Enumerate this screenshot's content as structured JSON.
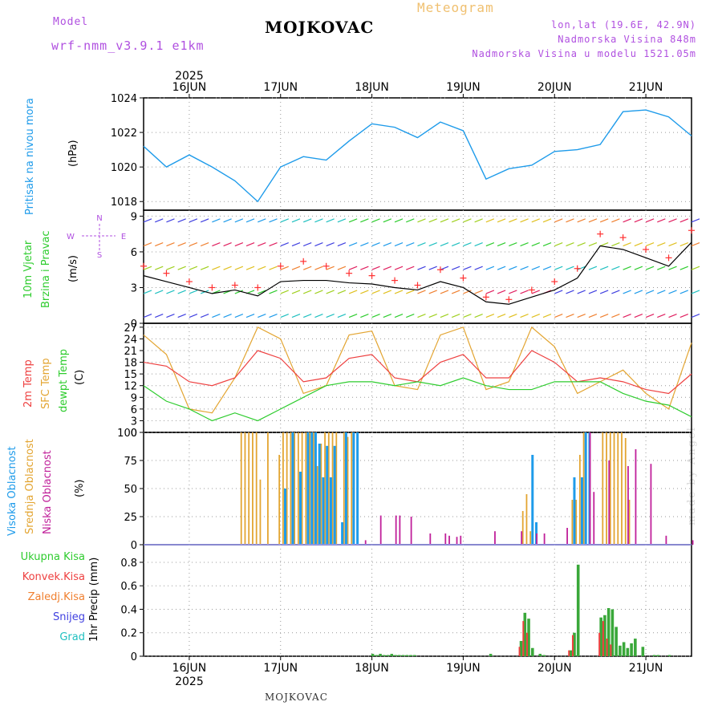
{
  "header": {
    "model_label": "Model",
    "model_name": "wrf-nmm_v3.9.1 e1km",
    "title": "MOJKOVAC",
    "meteogram_label": "Meteogram",
    "lonlat": "lon,lat (19.6E, 42.9N)",
    "altitude": "Nadmorska Visina 848m",
    "model_altitude": "Nadmorska Visina u modelu 1521.05m"
  },
  "footer": {
    "station": "MOJKOVAC",
    "watermark": "made by Angel"
  },
  "colors": {
    "pressure": "#1e9bea",
    "wind_speed": "#000000",
    "gust": "#ff3030",
    "temp2m": "#ee4040",
    "sfc_temp": "#e3a532",
    "dewpt": "#2ecc2e",
    "cloud_high": "#1e9bea",
    "cloud_mid": "#e3a532",
    "cloud_low": "#c0209a",
    "precip_total": "#3aa83a",
    "precip_conv": "#ee4040",
    "precip_frozen": "#f08030",
    "snow": "#4040e0",
    "hail": "#20c0c0",
    "label_purple": "#b050e0"
  },
  "chart_data": [
    {
      "type": "line",
      "id": "pressure",
      "ylabel_lines": [
        "Pritisak na nivou mora",
        "(hPa)"
      ],
      "ylim": [
        1017.5,
        1024
      ],
      "yticks": [
        1018,
        1020,
        1022,
        1024
      ],
      "x_unit": "hours since 2025-06-15 12:00 UTC",
      "series": [
        {
          "name": "Pritisak na nivou mora",
          "x": [
            0,
            6,
            12,
            18,
            24,
            30,
            36,
            42,
            48,
            54,
            60,
            66,
            72,
            78,
            84,
            90,
            96,
            102,
            108,
            114,
            120,
            126,
            132,
            138,
            144
          ],
          "values": [
            1021.2,
            1020.0,
            1020.7,
            1020.0,
            1019.2,
            1018.0,
            1020.0,
            1020.6,
            1020.4,
            1021.5,
            1022.5,
            1022.3,
            1021.7,
            1022.6,
            1022.1,
            1019.3,
            1019.9,
            1020.1,
            1020.9,
            1021.0,
            1021.3,
            1023.2,
            1023.3,
            1022.9,
            1021.8
          ]
        }
      ]
    },
    {
      "type": "line",
      "id": "wind",
      "ylabel_lines": [
        "10m Vjetar",
        "Brzina i Pravac",
        "(m/s)"
      ],
      "ylim": [
        0,
        9.5
      ],
      "yticks": [
        0,
        3,
        6,
        9
      ],
      "compass": [
        "N",
        "E",
        "S",
        "W"
      ],
      "series": [
        {
          "name": "Brzina",
          "x": [
            0,
            6,
            12,
            18,
            24,
            30,
            36,
            42,
            48,
            54,
            60,
            66,
            72,
            78,
            84,
            90,
            96,
            102,
            108,
            114,
            120,
            126,
            132,
            138,
            144
          ],
          "values": [
            4.0,
            3.5,
            3.0,
            2.5,
            2.8,
            2.3,
            3.5,
            3.6,
            3.6,
            3.4,
            3.3,
            3.0,
            2.8,
            3.5,
            3.0,
            1.8,
            1.6,
            2.2,
            2.8,
            3.8,
            6.5,
            6.2,
            5.5,
            4.8,
            6.8
          ]
        },
        {
          "name": "Udari",
          "x": [
            0,
            6,
            12,
            18,
            24,
            30,
            36,
            42,
            48,
            54,
            60,
            66,
            72,
            78,
            84,
            90,
            96,
            102,
            108,
            114,
            120,
            126,
            132,
            138,
            144
          ],
          "values": [
            4.8,
            4.2,
            3.5,
            3.0,
            3.2,
            3.0,
            4.8,
            5.2,
            4.8,
            4.2,
            4.0,
            3.6,
            3.2,
            4.5,
            3.8,
            2.2,
            2.0,
            2.8,
            3.5,
            4.6,
            7.5,
            7.2,
            6.2,
            5.5,
            7.8
          ]
        }
      ]
    },
    {
      "type": "line",
      "id": "temperature",
      "ylabel_lines": [
        "2m Temp",
        "SFC Temp",
        "dewpt Temp",
        "(C)"
      ],
      "ylim": [
        0,
        28
      ],
      "yticks": [
        0,
        3,
        6,
        9,
        12,
        15,
        18,
        21,
        24,
        27
      ],
      "series": [
        {
          "name": "2m Temp",
          "x": [
            0,
            6,
            12,
            18,
            24,
            30,
            36,
            42,
            48,
            54,
            60,
            66,
            72,
            78,
            84,
            90,
            96,
            102,
            108,
            114,
            120,
            126,
            132,
            138,
            144
          ],
          "values": [
            18,
            17,
            13,
            12,
            14,
            21,
            19,
            13,
            14,
            19,
            20,
            14,
            13,
            18,
            20,
            14,
            14,
            21,
            18,
            13,
            14,
            13,
            11,
            10,
            15
          ]
        },
        {
          "name": "SFC Temp",
          "x": [
            0,
            6,
            12,
            18,
            24,
            30,
            36,
            42,
            48,
            54,
            60,
            66,
            72,
            78,
            84,
            90,
            96,
            102,
            108,
            114,
            120,
            126,
            132,
            138,
            144
          ],
          "values": [
            25,
            20,
            6,
            5,
            14,
            27,
            24,
            10,
            12,
            25,
            26,
            12,
            11,
            25,
            27,
            11,
            13,
            27,
            22,
            10,
            13,
            16,
            10,
            6,
            23
          ]
        },
        {
          "name": "dewpt Temp",
          "x": [
            0,
            6,
            12,
            18,
            24,
            30,
            36,
            42,
            48,
            54,
            60,
            66,
            72,
            78,
            84,
            90,
            96,
            102,
            108,
            114,
            120,
            126,
            132,
            138,
            144
          ],
          "values": [
            12,
            8,
            6,
            3,
            5,
            3,
            6,
            9,
            12,
            13,
            13,
            12,
            13,
            12,
            14,
            12,
            11,
            11,
            13,
            13,
            13,
            10,
            8,
            7,
            4
          ]
        }
      ]
    },
    {
      "type": "bar",
      "id": "clouds",
      "ylabel_lines": [
        "Visoka Oblacnost",
        "Srednja Oblacnost",
        "Niska Oblacnost",
        "(%)"
      ],
      "ylim": [
        0,
        100
      ],
      "yticks": [
        0,
        25,
        50,
        75,
        100
      ],
      "series": [
        {
          "name": "Srednja Oblacnost",
          "x": [
            26,
            27,
            28,
            29,
            30,
            31,
            33,
            36,
            37,
            38,
            39,
            40,
            41,
            42,
            43,
            44,
            45,
            46,
            47,
            48,
            49,
            50,
            51,
            53,
            54,
            55,
            100,
            101,
            102,
            113,
            114,
            115,
            116,
            121,
            122,
            123,
            124,
            125,
            126,
            127,
            128
          ],
          "values": [
            100,
            100,
            100,
            100,
            100,
            58,
            100,
            80,
            100,
            100,
            100,
            100,
            100,
            100,
            100,
            100,
            100,
            70,
            90,
            100,
            100,
            100,
            100,
            100,
            96,
            100,
            30,
            45,
            12,
            40,
            40,
            80,
            100,
            100,
            100,
            100,
            100,
            100,
            100,
            95,
            40
          ]
        },
        {
          "name": "Visoka Oblacnost",
          "x": [
            37,
            39,
            41,
            43,
            44,
            45,
            46,
            47,
            48,
            49,
            50,
            52,
            53,
            55,
            56,
            102,
            103,
            113,
            115,
            116,
            117
          ],
          "values": [
            50,
            100,
            65,
            100,
            100,
            100,
            90,
            60,
            88,
            60,
            88,
            20,
            100,
            100,
            100,
            80,
            20,
            60,
            60,
            100,
            100
          ]
        },
        {
          "name": "Niska Oblacnost",
          "x": [
            58,
            62,
            66,
            67,
            70,
            75,
            79,
            80,
            82,
            83,
            92,
            99,
            103,
            105,
            111,
            117,
            118,
            122,
            127,
            129,
            133,
            137,
            144
          ],
          "values": [
            4,
            26,
            26,
            26,
            25,
            10,
            10,
            8,
            7,
            8,
            12,
            12,
            10,
            10,
            15,
            100,
            47,
            75,
            70,
            85,
            72,
            8,
            4
          ]
        }
      ]
    },
    {
      "type": "bar",
      "id": "precip",
      "ylabel_lines": [
        "Ukupna Kisa",
        "Konvek.Kisa",
        "Zaledj.Kisa",
        "Snijeg",
        "Grad",
        "1hr Precip (mm)"
      ],
      "ylim": [
        0,
        0.95
      ],
      "yticks": [
        0,
        0.2,
        0.4,
        0.6,
        0.8
      ],
      "series": [
        {
          "name": "Ukupna Kisa",
          "x": [
            60,
            61,
            62,
            63,
            64,
            65,
            66,
            67,
            68,
            69,
            70,
            71,
            91,
            99,
            100,
            101,
            102,
            104,
            105,
            112,
            113,
            114,
            120,
            121,
            122,
            123,
            124,
            125,
            126,
            127,
            128,
            129,
            131,
            134,
            135,
            138
          ],
          "values": [
            0.02,
            0.01,
            0.02,
            0.01,
            0.01,
            0.02,
            0.01,
            0.01,
            0.01,
            0.01,
            0.01,
            0.01,
            0.02,
            0.13,
            0.37,
            0.32,
            0.07,
            0.02,
            0.01,
            0.05,
            0.2,
            0.78,
            0.33,
            0.35,
            0.41,
            0.4,
            0.25,
            0.09,
            0.12,
            0.07,
            0.11,
            0.15,
            0.08,
            0.01,
            0.01,
            0.01
          ]
        },
        {
          "name": "Konvek.Kisa",
          "x": [
            99,
            100,
            101,
            112,
            113,
            120,
            121,
            122,
            123
          ],
          "values": [
            0.08,
            0.3,
            0.2,
            0.05,
            0.18,
            0.2,
            0.3,
            0.15,
            0.1
          ]
        }
      ]
    }
  ],
  "time_axis": {
    "year": "2025",
    "days": [
      "16JUN",
      "17JUN",
      "18JUN",
      "19JUN",
      "20JUN",
      "21JUN"
    ],
    "day_hours": [
      12,
      36,
      60,
      84,
      108,
      132
    ],
    "range": [
      0,
      144
    ]
  }
}
